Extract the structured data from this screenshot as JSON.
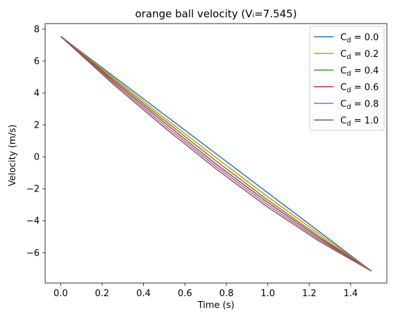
{
  "chart_data": {
    "type": "line",
    "title": "orange ball velocity (Vᵢ=7.545)",
    "xlabel": "Time (s)",
    "ylabel": "Velocity (m/s)",
    "xlim": [
      -0.075,
      1.575
    ],
    "ylim": [
      -7.9,
      8.35
    ],
    "xticks": [
      0.0,
      0.2,
      0.4,
      0.6,
      0.8,
      1.0,
      1.2,
      1.4
    ],
    "xtick_labels": [
      "0.0",
      "0.2",
      "0.4",
      "0.6",
      "0.8",
      "1.0",
      "1.2",
      "1.4"
    ],
    "yticks": [
      -6,
      -4,
      -2,
      0,
      2,
      4,
      6,
      8
    ],
    "ytick_labels": [
      "−6",
      "−4",
      "−2",
      "0",
      "2",
      "4",
      "6",
      "8"
    ],
    "grid": false,
    "legend_position": "upper-right",
    "x": [
      0.0,
      0.25,
      0.5,
      0.75,
      1.0,
      1.25,
      1.5
    ],
    "series": [
      {
        "name": "C",
        "subscript": "d",
        "suffix": " = 0.0",
        "color": "#1f77b4",
        "values": [
          7.55,
          5.1,
          2.65,
          0.2,
          -2.25,
          -4.7,
          -7.15
        ]
      },
      {
        "name": "C",
        "subscript": "d",
        "suffix": " = 0.2",
        "color": "#ff7f0e",
        "values": [
          7.55,
          5.0,
          2.45,
          -0.05,
          -2.5,
          -4.85,
          -7.15
        ]
      },
      {
        "name": "C",
        "subscript": "d",
        "suffix": " = 0.4",
        "color": "#2ca02c",
        "values": [
          7.55,
          4.9,
          2.3,
          -0.25,
          -2.7,
          -5.0,
          -7.15
        ]
      },
      {
        "name": "C",
        "subscript": "d",
        "suffix": " = 0.6",
        "color": "#d62728",
        "values": [
          7.55,
          4.8,
          2.15,
          -0.45,
          -2.85,
          -5.1,
          -7.15
        ]
      },
      {
        "name": "C",
        "subscript": "d",
        "suffix": " = 0.8",
        "color": "#9467bd",
        "values": [
          7.55,
          4.7,
          2.0,
          -0.6,
          -3.0,
          -5.2,
          -7.15
        ]
      },
      {
        "name": "C",
        "subscript": "d",
        "suffix": " = 1.0",
        "color": "#8c564b",
        "values": [
          7.55,
          4.6,
          1.85,
          -0.75,
          -3.15,
          -5.3,
          -7.15
        ]
      }
    ]
  }
}
